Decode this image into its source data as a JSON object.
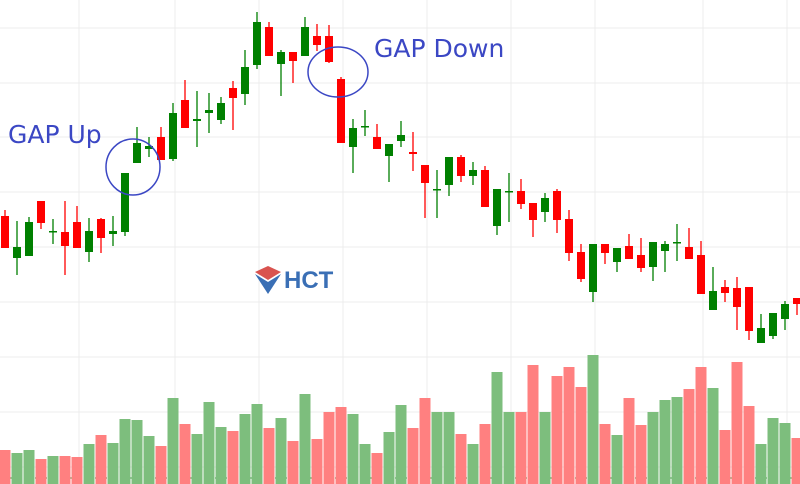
{
  "chart_data": {
    "type": "candlestick",
    "title": "",
    "xlabel": "",
    "ylabel": "",
    "grid": true,
    "colors": {
      "up": "#008000",
      "down": "#ff0000",
      "volume_up": "#7dbe7d",
      "volume_down": "#ff8080",
      "annotation": "#3b47c4"
    },
    "ohlc": [
      [
        18.4,
        19.0,
        15.2,
        15.2
      ],
      [
        14.2,
        17.9,
        12.5,
        15.3
      ],
      [
        14.4,
        18.3,
        14.4,
        17.8
      ],
      [
        19.9,
        19.9,
        17.1,
        17.7
      ],
      [
        16.9,
        18.1,
        15.6,
        16.9
      ],
      [
        16.8,
        19.9,
        12.5,
        15.4
      ],
      [
        17.8,
        19.4,
        15.2,
        15.2
      ],
      [
        14.8,
        18.2,
        13.8,
        16.9
      ],
      [
        18.1,
        18.2,
        14.7,
        16.2
      ],
      [
        16.6,
        18.4,
        15.4,
        16.9
      ],
      [
        16.8,
        22.7,
        16.4,
        22.7
      ],
      [
        23.7,
        27.3,
        23.7,
        25.7
      ],
      [
        25.1,
        26.3,
        24.3,
        25.4
      ],
      [
        26.3,
        27.3,
        24.0,
        24.0
      ],
      [
        24.1,
        29.7,
        23.9,
        28.7
      ],
      [
        30.0,
        32.0,
        27.2,
        27.2
      ],
      [
        27.9,
        30.9,
        25.3,
        28.1
      ],
      [
        28.7,
        30.7,
        26.7,
        29.0
      ],
      [
        28.0,
        30.3,
        27.6,
        29.7
      ],
      [
        31.2,
        31.9,
        27.0,
        30.2
      ],
      [
        30.6,
        35.0,
        29.5,
        33.3
      ],
      [
        33.5,
        38.8,
        33.1,
        37.8
      ],
      [
        37.3,
        37.8,
        34.4,
        34.4
      ],
      [
        33.6,
        35.0,
        30.4,
        34.8
      ],
      [
        34.8,
        34.8,
        31.7,
        33.9
      ],
      [
        34.4,
        38.3,
        34.4,
        37.3
      ],
      [
        36.4,
        37.6,
        34.9,
        35.5
      ],
      [
        36.4,
        37.5,
        33.7,
        33.8
      ],
      [
        32.1,
        32.3,
        25.7,
        25.7
      ],
      [
        25.3,
        28.1,
        22.7,
        27.2
      ],
      [
        27.4,
        29.0,
        26.4,
        27.4
      ],
      [
        26.3,
        27.6,
        25.1,
        25.1
      ],
      [
        24.4,
        25.6,
        21.8,
        25.6
      ],
      [
        25.9,
        27.9,
        25.3,
        26.5
      ],
      [
        24.8,
        26.8,
        22.9,
        24.6
      ],
      [
        23.5,
        23.5,
        18.2,
        21.7
      ],
      [
        21.1,
        23.0,
        18.2,
        21.1
      ],
      [
        21.5,
        24.3,
        20.4,
        24.3
      ],
      [
        24.3,
        24.5,
        21.8,
        22.4
      ],
      [
        22.4,
        23.8,
        21.5,
        23.0
      ],
      [
        23.0,
        23.4,
        19.3,
        19.3
      ],
      [
        17.4,
        21.1,
        16.5,
        21.1
      ],
      [
        20.9,
        22.7,
        17.8,
        20.9
      ],
      [
        20.9,
        22.1,
        19.1,
        19.6
      ],
      [
        19.7,
        19.7,
        16.3,
        18.0
      ],
      [
        18.8,
        20.7,
        17.8,
        20.2
      ],
      [
        20.9,
        21.1,
        16.7,
        18.0
      ],
      [
        18.1,
        19.0,
        13.9,
        14.7
      ],
      [
        14.8,
        15.6,
        11.8,
        12.1
      ],
      [
        10.8,
        15.6,
        9.8,
        15.6
      ],
      [
        15.6,
        15.6,
        13.6,
        14.7
      ],
      [
        13.8,
        15.2,
        12.8,
        15.2
      ],
      [
        15.4,
        16.6,
        14.1,
        14.1
      ],
      [
        14.5,
        16.2,
        12.8,
        13.2
      ],
      [
        13.3,
        15.8,
        11.9,
        15.8
      ],
      [
        14.9,
        15.9,
        12.8,
        15.6
      ],
      [
        15.8,
        17.6,
        13.9,
        15.8
      ],
      [
        15.3,
        17.2,
        14.1,
        14.1
      ],
      [
        14.5,
        15.9,
        10.6,
        10.6
      ],
      [
        9.0,
        13.3,
        9.0,
        10.9
      ],
      [
        11.3,
        12.0,
        9.8,
        10.7
      ],
      [
        11.2,
        12.3,
        7.0,
        9.3
      ],
      [
        11.3,
        11.3,
        6.0,
        6.9
      ],
      [
        5.7,
        8.6,
        5.7,
        7.2
      ],
      [
        6.4,
        8.7,
        6.1,
        8.7
      ],
      [
        8.1,
        9.9,
        7.0,
        9.6
      ],
      [
        10.2,
        10.2,
        8.5,
        9.6
      ]
    ],
    "volume": [
      34,
      31,
      34,
      25,
      28,
      28,
      27,
      40,
      49,
      41,
      65,
      64,
      48,
      38,
      86,
      60,
      50,
      82,
      57,
      53,
      70,
      80,
      56,
      66,
      43,
      90,
      45,
      72,
      77,
      70,
      40,
      31,
      52,
      79,
      56,
      86,
      72,
      72,
      50,
      40,
      60,
      112,
      72,
      72,
      119,
      72,
      108,
      117,
      97,
      129,
      60,
      49,
      86,
      59,
      72,
      84,
      87,
      95,
      117,
      96,
      54,
      122,
      78,
      40,
      66,
      61,
      46
    ],
    "volume_direction": "rggrgrrgrggggrgrgggrggrgrgrrrggrggrrggrgrggrrgrrrgrgrrgggrrgrrrgggr",
    "annotations": [
      {
        "text": "GAP Up",
        "candle_index": 10
      },
      {
        "text": "GAP Down",
        "candle_index": 28
      }
    ]
  },
  "logo": {
    "text": "HCT"
  }
}
